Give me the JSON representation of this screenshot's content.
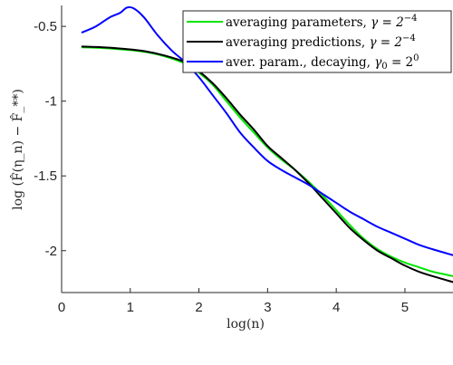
{
  "chart_data": {
    "type": "line",
    "xlabel": "log(n)",
    "ylabel": "log (F̂(η_n) − F̂_**)",
    "xlim": [
      0,
      5.7
    ],
    "ylim": [
      -2.28,
      -0.36
    ],
    "xticks": [
      0,
      1,
      2,
      3,
      4,
      5
    ],
    "yticks": [
      -0.5,
      -1,
      -1.5,
      -2
    ],
    "xtick_labels": [
      "0",
      "1",
      "2",
      "3",
      "4",
      "5"
    ],
    "ytick_labels": [
      "-0.5",
      "-1",
      "-1.5",
      "-2"
    ],
    "grid": false,
    "legend_position": "top-right",
    "series": [
      {
        "name": "averaging parameters, γ = 2^{-4}",
        "name_main": "averaging parameters, ",
        "name_math": "γ = 2",
        "name_exp": "−4",
        "color": "#00e600",
        "x": [
          0.3,
          0.6,
          0.9,
          1.2,
          1.5,
          1.8,
          2.0,
          2.2,
          2.4,
          2.6,
          2.8,
          3.0,
          3.2,
          3.4,
          3.6,
          3.8,
          4.0,
          4.2,
          4.4,
          4.6,
          4.8,
          5.0,
          5.2,
          5.4,
          5.7
        ],
        "y": [
          -0.64,
          -0.645,
          -0.655,
          -0.67,
          -0.7,
          -0.75,
          -0.81,
          -0.89,
          -1.0,
          -1.11,
          -1.21,
          -1.31,
          -1.39,
          -1.46,
          -1.54,
          -1.63,
          -1.73,
          -1.83,
          -1.92,
          -1.99,
          -2.04,
          -2.08,
          -2.11,
          -2.14,
          -2.17
        ]
      },
      {
        "name": "averaging predictions, γ = 2^{-4}",
        "name_main": "averaging predictions, ",
        "name_math": "γ = 2",
        "name_exp": "−4",
        "color": "#000000",
        "x": [
          0.3,
          0.6,
          0.9,
          1.2,
          1.5,
          1.8,
          2.0,
          2.2,
          2.4,
          2.6,
          2.8,
          3.0,
          3.2,
          3.4,
          3.6,
          3.8,
          4.0,
          4.2,
          4.4,
          4.6,
          4.8,
          5.0,
          5.2,
          5.4,
          5.7
        ],
        "y": [
          -0.635,
          -0.64,
          -0.65,
          -0.665,
          -0.695,
          -0.74,
          -0.8,
          -0.88,
          -0.98,
          -1.09,
          -1.19,
          -1.3,
          -1.38,
          -1.46,
          -1.55,
          -1.65,
          -1.75,
          -1.85,
          -1.93,
          -2.0,
          -2.05,
          -2.1,
          -2.14,
          -2.17,
          -2.21
        ]
      },
      {
        "name": "aver. param., decaying, γ0 = 2^0",
        "name_main": "aver. param., decaying, ",
        "name_math": "γ",
        "name_sub": "0",
        "name_eq": " = 2",
        "name_exp": "0",
        "color": "#0000ff",
        "x": [
          0.3,
          0.5,
          0.7,
          0.85,
          0.95,
          1.05,
          1.2,
          1.4,
          1.6,
          1.8,
          2.0,
          2.2,
          2.4,
          2.6,
          2.8,
          3.0,
          3.2,
          3.4,
          3.6,
          3.8,
          4.0,
          4.2,
          4.4,
          4.6,
          4.8,
          5.0,
          5.2,
          5.4,
          5.7
        ],
        "y": [
          -0.54,
          -0.5,
          -0.44,
          -0.41,
          -0.375,
          -0.38,
          -0.44,
          -0.56,
          -0.66,
          -0.74,
          -0.84,
          -0.96,
          -1.08,
          -1.21,
          -1.31,
          -1.4,
          -1.46,
          -1.51,
          -1.56,
          -1.62,
          -1.68,
          -1.74,
          -1.79,
          -1.84,
          -1.88,
          -1.92,
          -1.96,
          -1.99,
          -2.03
        ]
      }
    ]
  }
}
